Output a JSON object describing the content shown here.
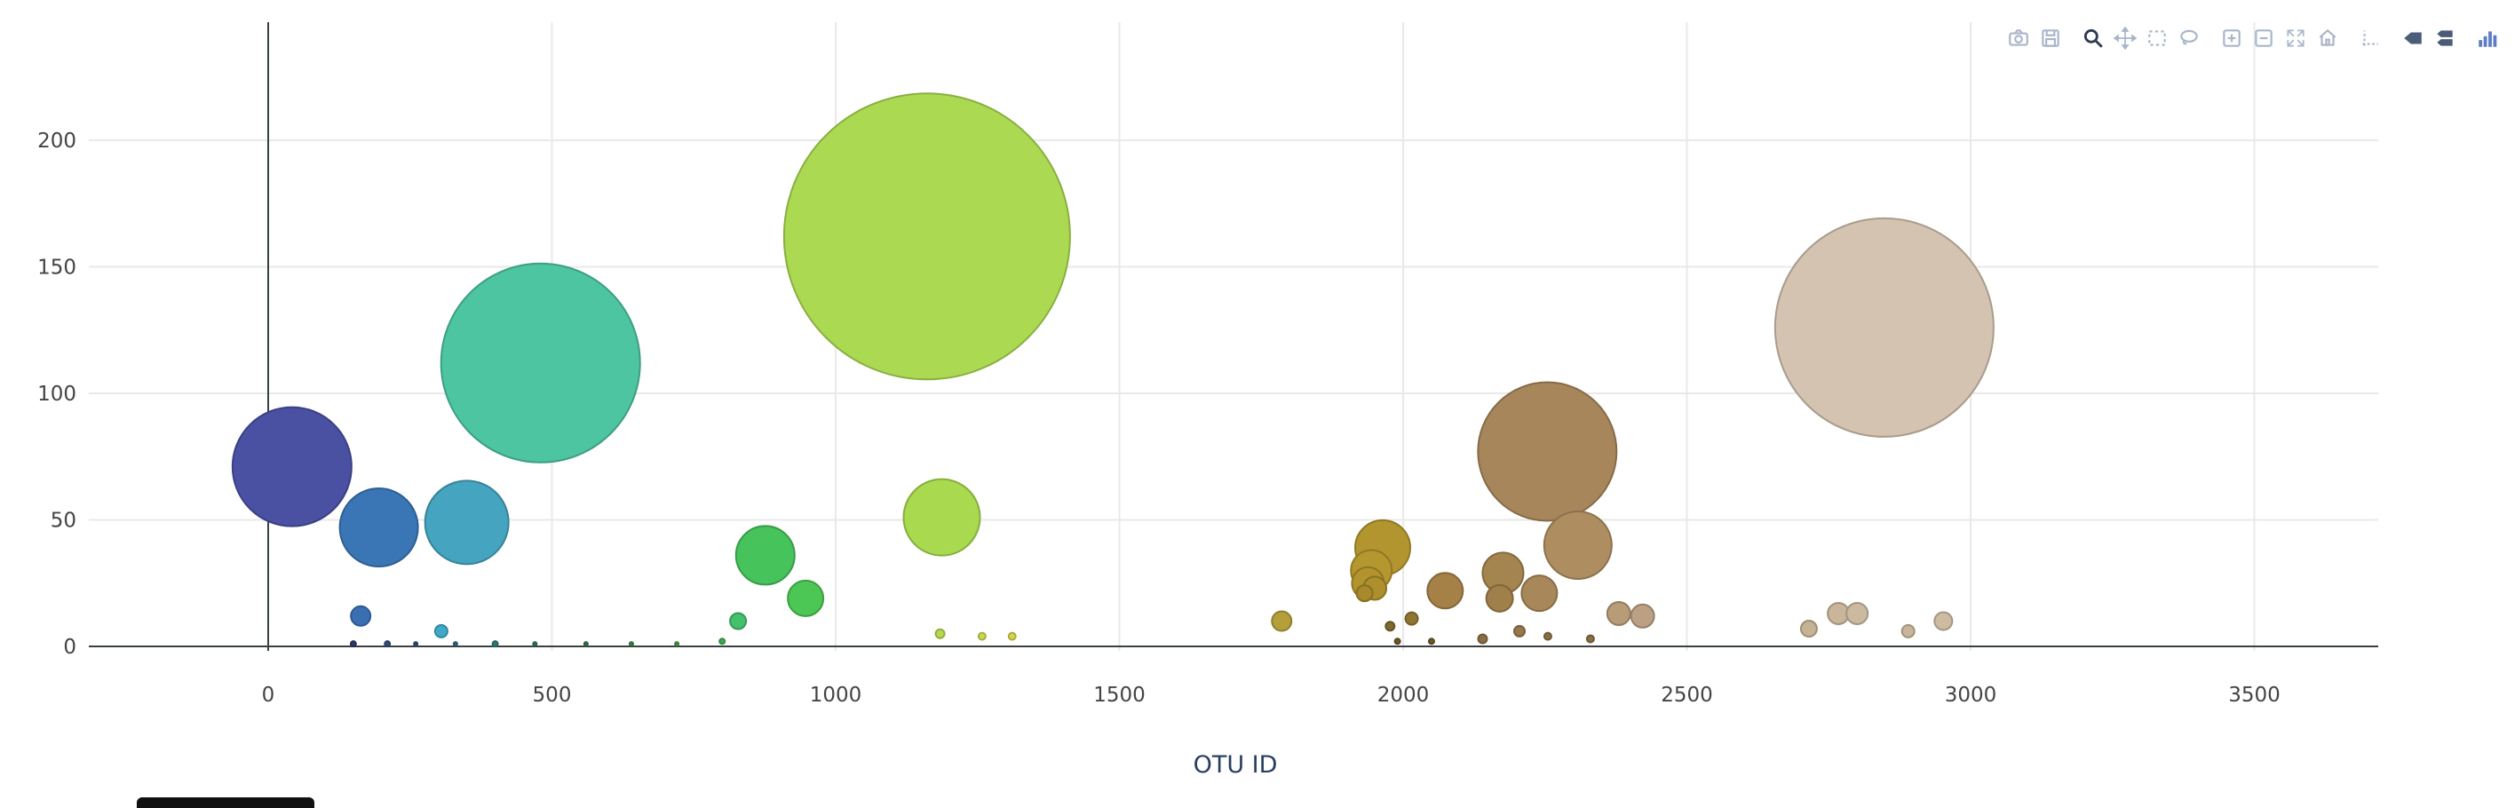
{
  "modebar": {
    "groups": [
      [
        "camera",
        "save"
      ],
      [
        "zoom",
        "pan",
        "box-select",
        "lasso-select"
      ],
      [
        "zoom-in",
        "zoom-out",
        "autoscale",
        "reset-axes"
      ],
      [
        "spikelines"
      ],
      [
        "hover-closest",
        "hover-compare"
      ],
      [
        "plotly-logo"
      ]
    ],
    "active_icon": "zoom"
  },
  "chart_data": {
    "type": "bubble",
    "title": "",
    "xlabel": "OTU ID",
    "ylabel": "",
    "x_ticks": [
      0,
      500,
      1000,
      1500,
      2000,
      2500,
      3000,
      3500
    ],
    "y_ticks": [
      0,
      50,
      100,
      150,
      200
    ],
    "x_range": [
      -315,
      3725
    ],
    "y_range": [
      -2,
      247
    ],
    "grid": true,
    "legend": "none",
    "points": [
      {
        "x": 42,
        "y": 71,
        "r": 67,
        "color": "#4a50a2"
      },
      {
        "x": 195,
        "y": 47,
        "r": 44,
        "color": "#3a76b6"
      },
      {
        "x": 350,
        "y": 49,
        "r": 47,
        "color": "#45a4bf"
      },
      {
        "x": 163,
        "y": 12,
        "r": 11,
        "color": "#3a6fb3"
      },
      {
        "x": 305,
        "y": 6,
        "r": 7,
        "color": "#3fa9c9"
      },
      {
        "x": 480,
        "y": 112,
        "r": 112,
        "color": "#4ec5a1"
      },
      {
        "x": 876,
        "y": 36,
        "r": 33,
        "color": "#47c35c"
      },
      {
        "x": 947,
        "y": 19,
        "r": 20,
        "color": "#4cc654"
      },
      {
        "x": 828,
        "y": 10,
        "r": 9,
        "color": "#43c16d"
      },
      {
        "x": 1161,
        "y": 162,
        "r": 161,
        "color": "#abda52"
      },
      {
        "x": 1187,
        "y": 51,
        "r": 43,
        "color": "#a8d94f"
      },
      {
        "x": 1184,
        "y": 5,
        "r": 5,
        "color": "#b8d94e"
      },
      {
        "x": 1258,
        "y": 4,
        "r": 4,
        "color": "#ccd94e"
      },
      {
        "x": 1311,
        "y": 4,
        "r": 4,
        "color": "#d6d44e"
      },
      {
        "x": 1786,
        "y": 10,
        "r": 11,
        "color": "#b49f3a"
      },
      {
        "x": 1964,
        "y": 39,
        "r": 31,
        "color": "#b3952f"
      },
      {
        "x": 1944,
        "y": 30,
        "r": 23,
        "color": "#b59730"
      },
      {
        "x": 1938,
        "y": 25,
        "r": 18,
        "color": "#b2932d"
      },
      {
        "x": 1950,
        "y": 23,
        "r": 13,
        "color": "#ad8f2c"
      },
      {
        "x": 1932,
        "y": 21,
        "r": 9,
        "color": "#a8892b"
      },
      {
        "x": 2015,
        "y": 11,
        "r": 7,
        "color": "#8f7630"
      },
      {
        "x": 1977,
        "y": 8,
        "r": 5,
        "color": "#7d6a2e"
      },
      {
        "x": 2074,
        "y": 22,
        "r": 20,
        "color": "#a58148"
      },
      {
        "x": 2176,
        "y": 29,
        "r": 23,
        "color": "#a5854f"
      },
      {
        "x": 2170,
        "y": 19,
        "r": 15,
        "color": "#9f7f4a"
      },
      {
        "x": 2240,
        "y": 21,
        "r": 20,
        "color": "#a8885a"
      },
      {
        "x": 2254,
        "y": 77,
        "r": 78,
        "color": "#a7865b"
      },
      {
        "x": 2308,
        "y": 40,
        "r": 38,
        "color": "#ae8d60"
      },
      {
        "x": 2380,
        "y": 13,
        "r": 13,
        "color": "#b79c77"
      },
      {
        "x": 2422,
        "y": 12,
        "r": 13,
        "color": "#bba083"
      },
      {
        "x": 2140,
        "y": 3,
        "r": 5,
        "color": "#8a6f45"
      },
      {
        "x": 2205,
        "y": 6,
        "r": 6,
        "color": "#96784c"
      },
      {
        "x": 2255,
        "y": 4,
        "r": 4,
        "color": "#8a6f45"
      },
      {
        "x": 2330,
        "y": 3,
        "r": 4,
        "color": "#8a6f45"
      },
      {
        "x": 2848,
        "y": 126,
        "r": 123,
        "color": "#d3c3b0"
      },
      {
        "x": 2715,
        "y": 7,
        "r": 9,
        "color": "#c6b294"
      },
      {
        "x": 2767,
        "y": 13,
        "r": 12,
        "color": "#c9b69a"
      },
      {
        "x": 2800,
        "y": 13,
        "r": 12,
        "color": "#ccbaa0"
      },
      {
        "x": 2890,
        "y": 6,
        "r": 7,
        "color": "#c9b69a"
      },
      {
        "x": 2952,
        "y": 10,
        "r": 10,
        "color": "#cdbca2"
      },
      {
        "x": 150,
        "y": 1,
        "r": 3,
        "color": "#2e3a66"
      },
      {
        "x": 210,
        "y": 1,
        "r": 3,
        "color": "#2f4f7a"
      },
      {
        "x": 260,
        "y": 1,
        "r": 2,
        "color": "#2f4f7a"
      },
      {
        "x": 330,
        "y": 1,
        "r": 2,
        "color": "#2e6a80"
      },
      {
        "x": 400,
        "y": 1,
        "r": 3,
        "color": "#2e7a70"
      },
      {
        "x": 470,
        "y": 1,
        "r": 2,
        "color": "#2e7a5a"
      },
      {
        "x": 560,
        "y": 1,
        "r": 2,
        "color": "#337a4a"
      },
      {
        "x": 640,
        "y": 1,
        "r": 2,
        "color": "#3a8a45"
      },
      {
        "x": 720,
        "y": 1,
        "r": 2,
        "color": "#4a9a45"
      },
      {
        "x": 800,
        "y": 2,
        "r": 3,
        "color": "#3fae52"
      },
      {
        "x": 1990,
        "y": 2,
        "r": 3,
        "color": "#6b5a26"
      },
      {
        "x": 2050,
        "y": 2,
        "r": 3,
        "color": "#6b5a26"
      }
    ]
  }
}
